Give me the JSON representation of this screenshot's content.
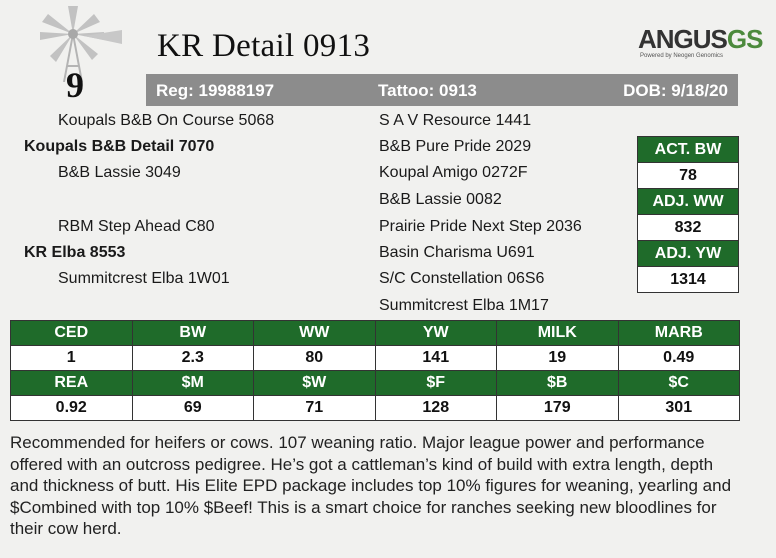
{
  "lot_number": "9",
  "title": "KR Detail 0913",
  "logo": {
    "main": "ANGUS",
    "accent": "GS",
    "tagline": "Powered by Neogen Genomics"
  },
  "info_bar": {
    "reg": "Reg: 19988197",
    "tattoo": "Tattoo: 0913",
    "dob": "DOB: 9/18/20"
  },
  "pedigree": {
    "sire_sire": "Koupals B&B On Course 5068",
    "sire": "Koupals B&B Detail 7070",
    "sire_dam": "B&B Lassie 3049",
    "dam_sire": "RBM Step Ahead C80",
    "dam": "KR Elba 8553",
    "dam_dam": "Summitcrest Elba 1W01",
    "ggs1": "S A V Resource 1441",
    "ggd1": "B&B Pure Pride 2029",
    "ggs2": "Koupal Amigo 0272F",
    "ggd2": "B&B Lassie 0082",
    "ggs3": "Prairie Pride Next Step 2036",
    "ggd3": "Basin Charisma U691",
    "ggs4": "S/C Constellation 06S6",
    "ggd4": "Summitcrest Elba 1M17"
  },
  "actual": [
    {
      "label": "ACT. BW",
      "value": "78"
    },
    {
      "label": "ADJ. WW",
      "value": "832"
    },
    {
      "label": "ADJ. YW",
      "value": "1314"
    }
  ],
  "epd": {
    "row1_headers": [
      "CED",
      "BW",
      "WW",
      "YW",
      "MILK",
      "MARB"
    ],
    "row1_values": [
      "1",
      "2.3",
      "80",
      "141",
      "19",
      "0.49"
    ],
    "row2_headers": [
      "REA",
      "$M",
      "$W",
      "$F",
      "$B",
      "$C"
    ],
    "row2_values": [
      "0.92",
      "69",
      "71",
      "128",
      "179",
      "301"
    ]
  },
  "description": "Recommended for heifers or cows. 107 weaning ratio. Major league power and performance offered with an outcross pedigree. He’s got a cattleman’s kind of build with extra length, depth and thickness of butt. His Elite EPD package includes top 10% figures for weaning, yearling and $Combined with top 10% $Beef! This is a smart choice for ranches seeking new bloodlines for their cow herd.",
  "colors": {
    "header_green": "#1f6b2a",
    "info_bar_gray": "#8c8c8c",
    "logo_green": "#4c8a3c"
  }
}
